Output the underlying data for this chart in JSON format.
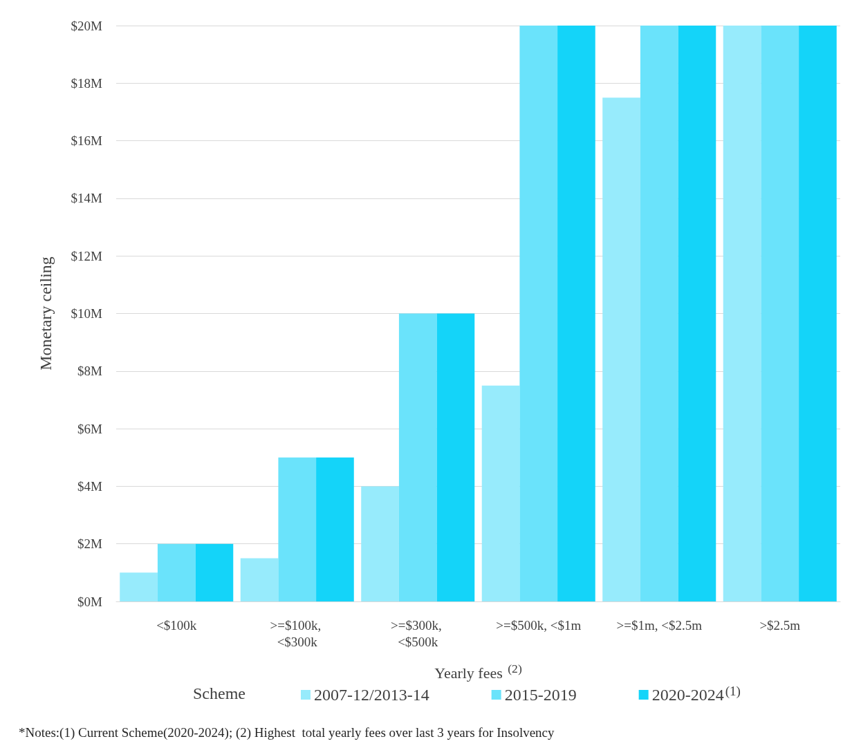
{
  "chart_data": {
    "type": "bar",
    "xlabel": "Yearly fees $^{(2)}$",
    "ylabel": "Monetary ceiling",
    "legend_title": "Scheme",
    "legend": "bottom",
    "grid": "y",
    "categories": [
      "<$100k",
      ">=$100k, <$300k",
      ">=$300k, <$500k",
      ">=$500k, <$1m",
      ">=$1m, <$2.5m",
      ">$2.5m"
    ],
    "ylim": [
      0,
      20
    ],
    "yticks": [
      {
        "value": 0,
        "label": "$0M"
      },
      {
        "value": 2,
        "label": "$2M"
      },
      {
        "value": 4,
        "label": "$4M"
      },
      {
        "value": 6,
        "label": "$6M"
      },
      {
        "value": 8,
        "label": "$8M"
      },
      {
        "value": 10,
        "label": "$10M"
      },
      {
        "value": 12,
        "label": "$12M"
      },
      {
        "value": 14,
        "label": "$14M"
      },
      {
        "value": 16,
        "label": "$16M"
      },
      {
        "value": 18,
        "label": "$18M"
      },
      {
        "value": 20,
        "label": "$20M"
      }
    ],
    "series": [
      {
        "name": "2007-12/2013-14",
        "color": "#97ebfc",
        "values": [
          1,
          1.5,
          4,
          7.5,
          17.5,
          20
        ]
      },
      {
        "name": "2015-2019",
        "color": "#6ae3fb",
        "values": [
          2,
          5,
          10,
          20,
          20,
          20
        ]
      },
      {
        "name": "2020-2024$^{(1)}$",
        "color": "#14d4f9",
        "values": [
          2,
          5,
          10,
          20,
          20,
          20
        ]
      }
    ],
    "annotations": [
      "*Notes:(1) Current Scheme(2020-2024); (2) Highest  total yearly fees over last 3 years for Insolvency"
    ]
  }
}
